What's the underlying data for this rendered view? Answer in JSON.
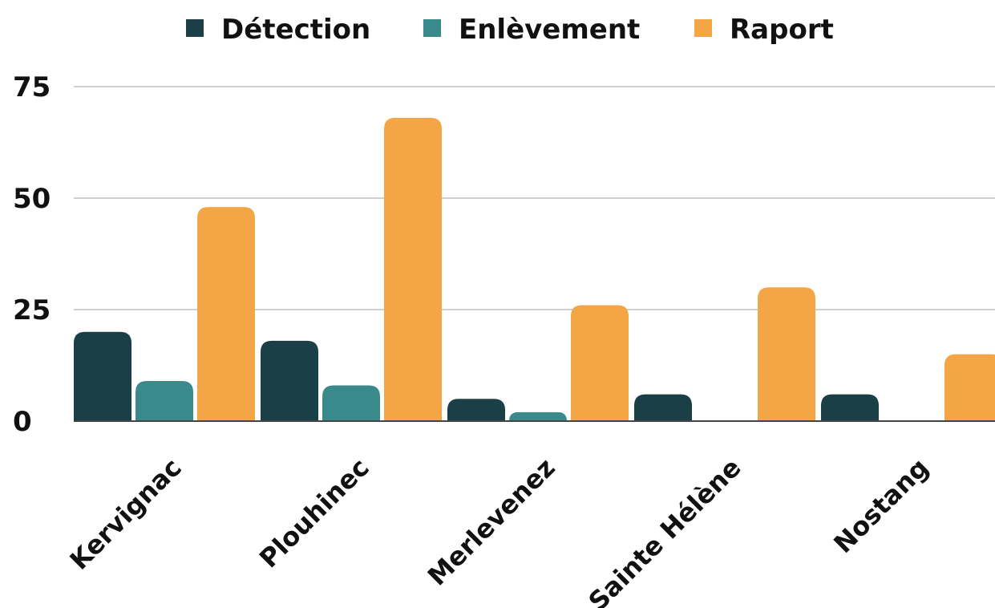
{
  "chart_data": {
    "type": "bar",
    "categories": [
      "Kervignac",
      "Plouhinec",
      "Merlevenez",
      "Sainte Hélène",
      "Nostang"
    ],
    "series": [
      {
        "name": "Détection",
        "color": "#1b3f47",
        "values": [
          20,
          18,
          5,
          6,
          6
        ]
      },
      {
        "name": "Enlèvement",
        "color": "#3a8a8c",
        "values": [
          9,
          8,
          2,
          0,
          0
        ]
      },
      {
        "name": "Raport",
        "color": "#f4a545",
        "values": [
          48,
          68,
          26,
          30,
          15
        ]
      }
    ],
    "yticks": [
      "0",
      "25",
      "50",
      "75"
    ],
    "ylim": [
      0,
      75
    ],
    "grid": true,
    "legend_position": "top-center",
    "title": "",
    "xlabel": "",
    "ylabel": ""
  }
}
